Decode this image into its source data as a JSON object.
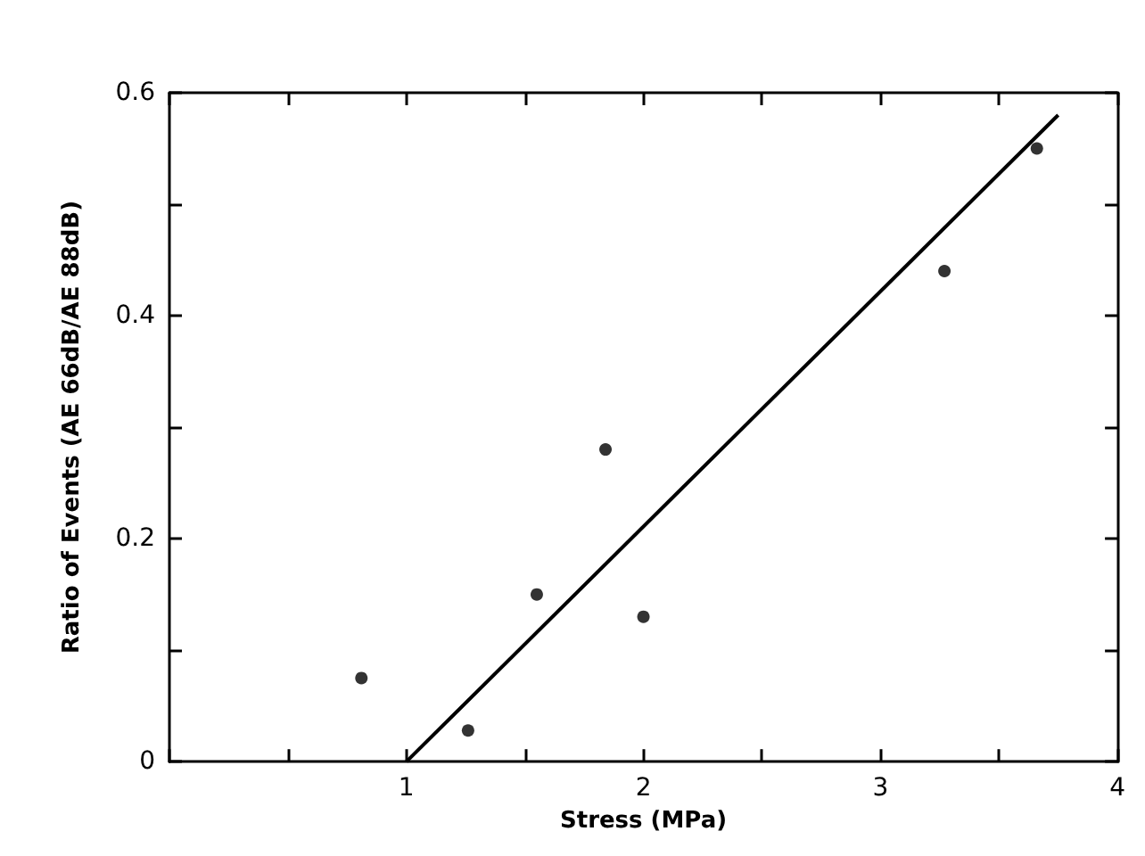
{
  "chart_data": {
    "type": "scatter",
    "xlabel": "Stress (MPa)",
    "ylabel": "Ratio of Events (AE 66dB/AE 88dB)",
    "series": [
      {
        "type": "scatter",
        "color": "#000000",
        "marker": "circle",
        "x": [
          0.81,
          1.26,
          1.55,
          1.84,
          2.0,
          3.27,
          3.66
        ],
        "values": [
          0.075,
          0.028,
          0.15,
          0.28,
          0.13,
          0.44,
          0.55
        ]
      },
      {
        "type": "line",
        "color": "#000000",
        "marker": "none",
        "line_style": "solid",
        "x": [
          1,
          3.75
        ],
        "values": [
          0,
          0.58
        ]
      }
    ],
    "xlim": [
      0,
      4
    ],
    "ylim": [
      0,
      0.6
    ],
    "xticks": [
      {
        "value": 0,
        "label": null
      },
      {
        "value": 0.5,
        "label": null
      },
      1,
      {
        "value": 1.5,
        "label": null
      },
      2,
      {
        "value": 2.5,
        "label": null
      },
      3,
      {
        "value": 3.5,
        "label": null
      },
      4
    ],
    "yticks": [
      0,
      {
        "value": 0.1,
        "label": null
      },
      0.2,
      {
        "value": 0.3,
        "label": null
      },
      0.4,
      {
        "value": 0.5,
        "label": null
      },
      0.6
    ],
    "grid": false
  }
}
